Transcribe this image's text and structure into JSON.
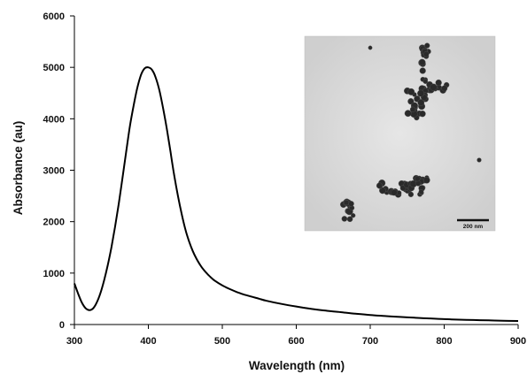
{
  "chart_data": {
    "type": "line",
    "title": "",
    "xlabel": "Wavelength (nm)",
    "ylabel": "Absorbance (au)",
    "xlim": [
      300,
      900
    ],
    "ylim": [
      0,
      6000
    ],
    "xticks": [
      300,
      400,
      500,
      600,
      700,
      800,
      900
    ],
    "yticks": [
      0,
      1000,
      2000,
      3000,
      4000,
      5000,
      6000
    ],
    "grid": false,
    "series": [
      {
        "color": "#000000",
        "x": [
          300,
          305,
          310,
          315,
          320,
          325,
          330,
          335,
          340,
          345,
          350,
          355,
          360,
          365,
          370,
          375,
          380,
          385,
          390,
          395,
          400,
          405,
          410,
          415,
          420,
          425,
          430,
          435,
          440,
          445,
          450,
          455,
          460,
          465,
          470,
          475,
          480,
          485,
          490,
          500,
          510,
          520,
          530,
          540,
          550,
          560,
          580,
          600,
          620,
          640,
          660,
          680,
          700,
          720,
          740,
          760,
          780,
          800,
          820,
          840,
          860,
          880,
          900
        ],
        "y": [
          800,
          600,
          430,
          320,
          280,
          310,
          420,
          600,
          850,
          1150,
          1500,
          1900,
          2350,
          2850,
          3350,
          3850,
          4250,
          4600,
          4850,
          4980,
          5000,
          4950,
          4800,
          4550,
          4200,
          3800,
          3350,
          2900,
          2500,
          2150,
          1850,
          1620,
          1430,
          1280,
          1160,
          1060,
          980,
          910,
          850,
          760,
          690,
          630,
          580,
          540,
          500,
          460,
          400,
          350,
          305,
          270,
          240,
          210,
          185,
          165,
          148,
          132,
          118,
          105,
          95,
          87,
          80,
          74,
          68
        ]
      }
    ]
  },
  "inset": {
    "scale_bar_label": "200 nm"
  }
}
